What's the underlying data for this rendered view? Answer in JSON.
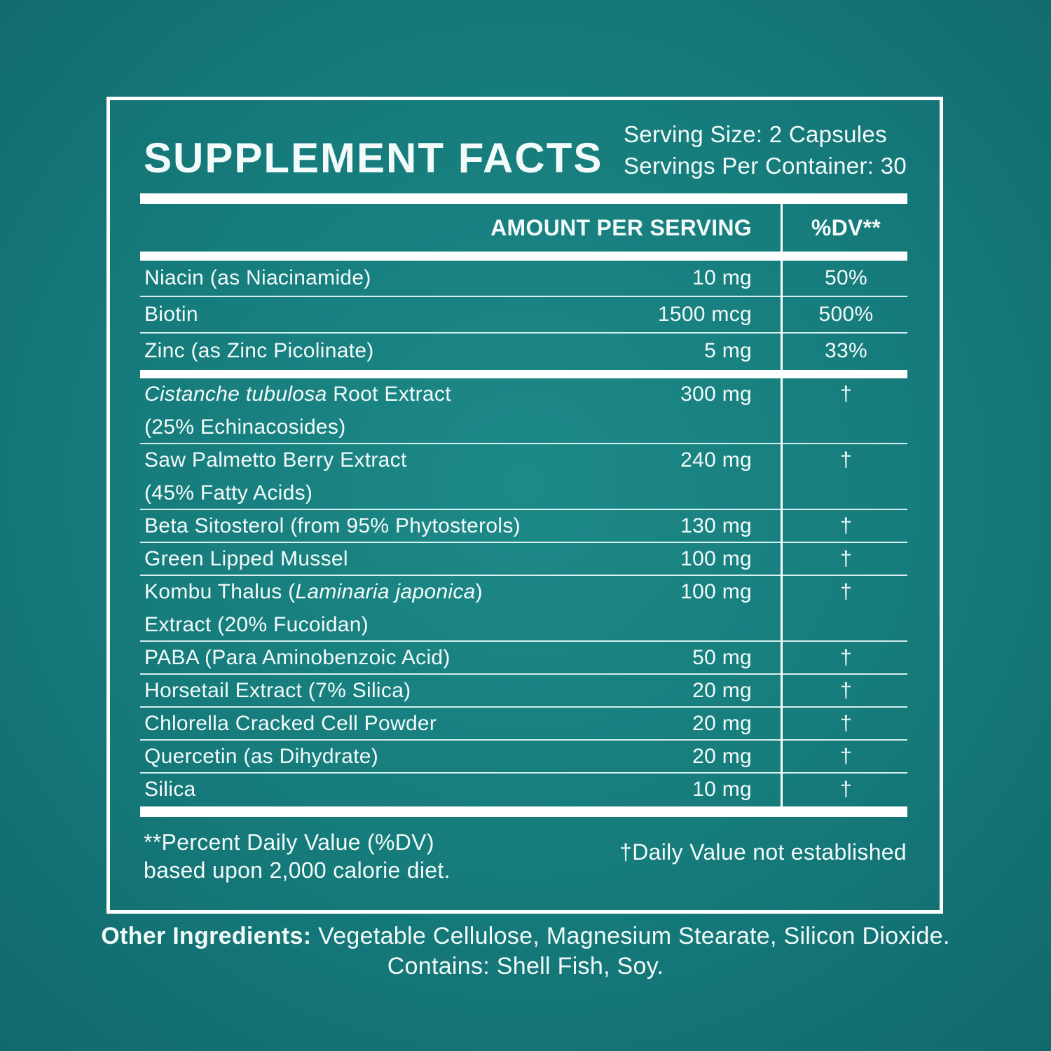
{
  "colors": {
    "background_center": "#1d8a88",
    "background_edge": "#10696d",
    "panel_border": "#ffffff",
    "text": "#f2fbfa",
    "divider_bar": "#ffffff"
  },
  "header": {
    "title": "SUPPLEMENT FACTS",
    "serving_size": "Serving Size: 2 Capsules",
    "servings_per_container": "Servings Per Container: 30"
  },
  "table": {
    "columns": {
      "amount": "AMOUNT PER SERVING",
      "dv": "%DV**"
    },
    "vitamin_rows": [
      {
        "lines": [
          [
            {
              "t": "Niacin (as Niacinamide)"
            }
          ]
        ],
        "amount": "10 mg",
        "dv": "50%"
      },
      {
        "lines": [
          [
            {
              "t": "Biotin"
            }
          ]
        ],
        "amount": "1500 mcg",
        "dv": "500%"
      },
      {
        "lines": [
          [
            {
              "t": "Zinc (as Zinc Picolinate)"
            }
          ]
        ],
        "amount": "5 mg",
        "dv": "33%"
      }
    ],
    "blend_rows": [
      {
        "lines": [
          [
            {
              "t": "Cistanche tubulosa",
              "i": true
            },
            {
              "t": " Root Extract"
            }
          ],
          [
            {
              "t": "(25% Echinacosides)"
            }
          ]
        ],
        "amount": "300 mg",
        "dv": "†"
      },
      {
        "lines": [
          [
            {
              "t": "Saw Palmetto Berry Extract"
            }
          ],
          [
            {
              "t": "(45% Fatty Acids)"
            }
          ]
        ],
        "amount": "240 mg",
        "dv": "†"
      },
      {
        "lines": [
          [
            {
              "t": "Beta Sitosterol (from 95% Phytosterols)"
            }
          ]
        ],
        "amount": "130 mg",
        "dv": "†"
      },
      {
        "lines": [
          [
            {
              "t": "Green Lipped Mussel"
            }
          ]
        ],
        "amount": "100 mg",
        "dv": "†"
      },
      {
        "lines": [
          [
            {
              "t": "Kombu Thalus ("
            },
            {
              "t": "Laminaria japonica",
              "i": true
            },
            {
              "t": ")"
            }
          ],
          [
            {
              "t": "Extract (20% Fucoidan)"
            }
          ]
        ],
        "amount": "100 mg",
        "dv": "†"
      },
      {
        "lines": [
          [
            {
              "t": "PABA (Para Aminobenzoic Acid)"
            }
          ]
        ],
        "amount": "50 mg",
        "dv": "†"
      },
      {
        "lines": [
          [
            {
              "t": "Horsetail Extract (7% Silica)"
            }
          ]
        ],
        "amount": "20 mg",
        "dv": "†"
      },
      {
        "lines": [
          [
            {
              "t": "Chlorella Cracked Cell Powder"
            }
          ]
        ],
        "amount": "20 mg",
        "dv": "†"
      },
      {
        "lines": [
          [
            {
              "t": "Quercetin (as Dihydrate)"
            }
          ]
        ],
        "amount": "20 mg",
        "dv": "†"
      },
      {
        "lines": [
          [
            {
              "t": "Silica"
            }
          ]
        ],
        "amount": "10 mg",
        "dv": "†"
      }
    ]
  },
  "footnotes": {
    "left_line1": "**Percent Daily Value (%DV)",
    "left_line2": "based upon 2,000 calorie diet.",
    "right": "†Daily Value not established"
  },
  "other_ingredients": {
    "label": "Other Ingredients:",
    "text": " Vegetable Cellulose, Magnesium Stearate, Silicon Dioxide.",
    "contains": "Contains: Shell Fish, Soy."
  }
}
